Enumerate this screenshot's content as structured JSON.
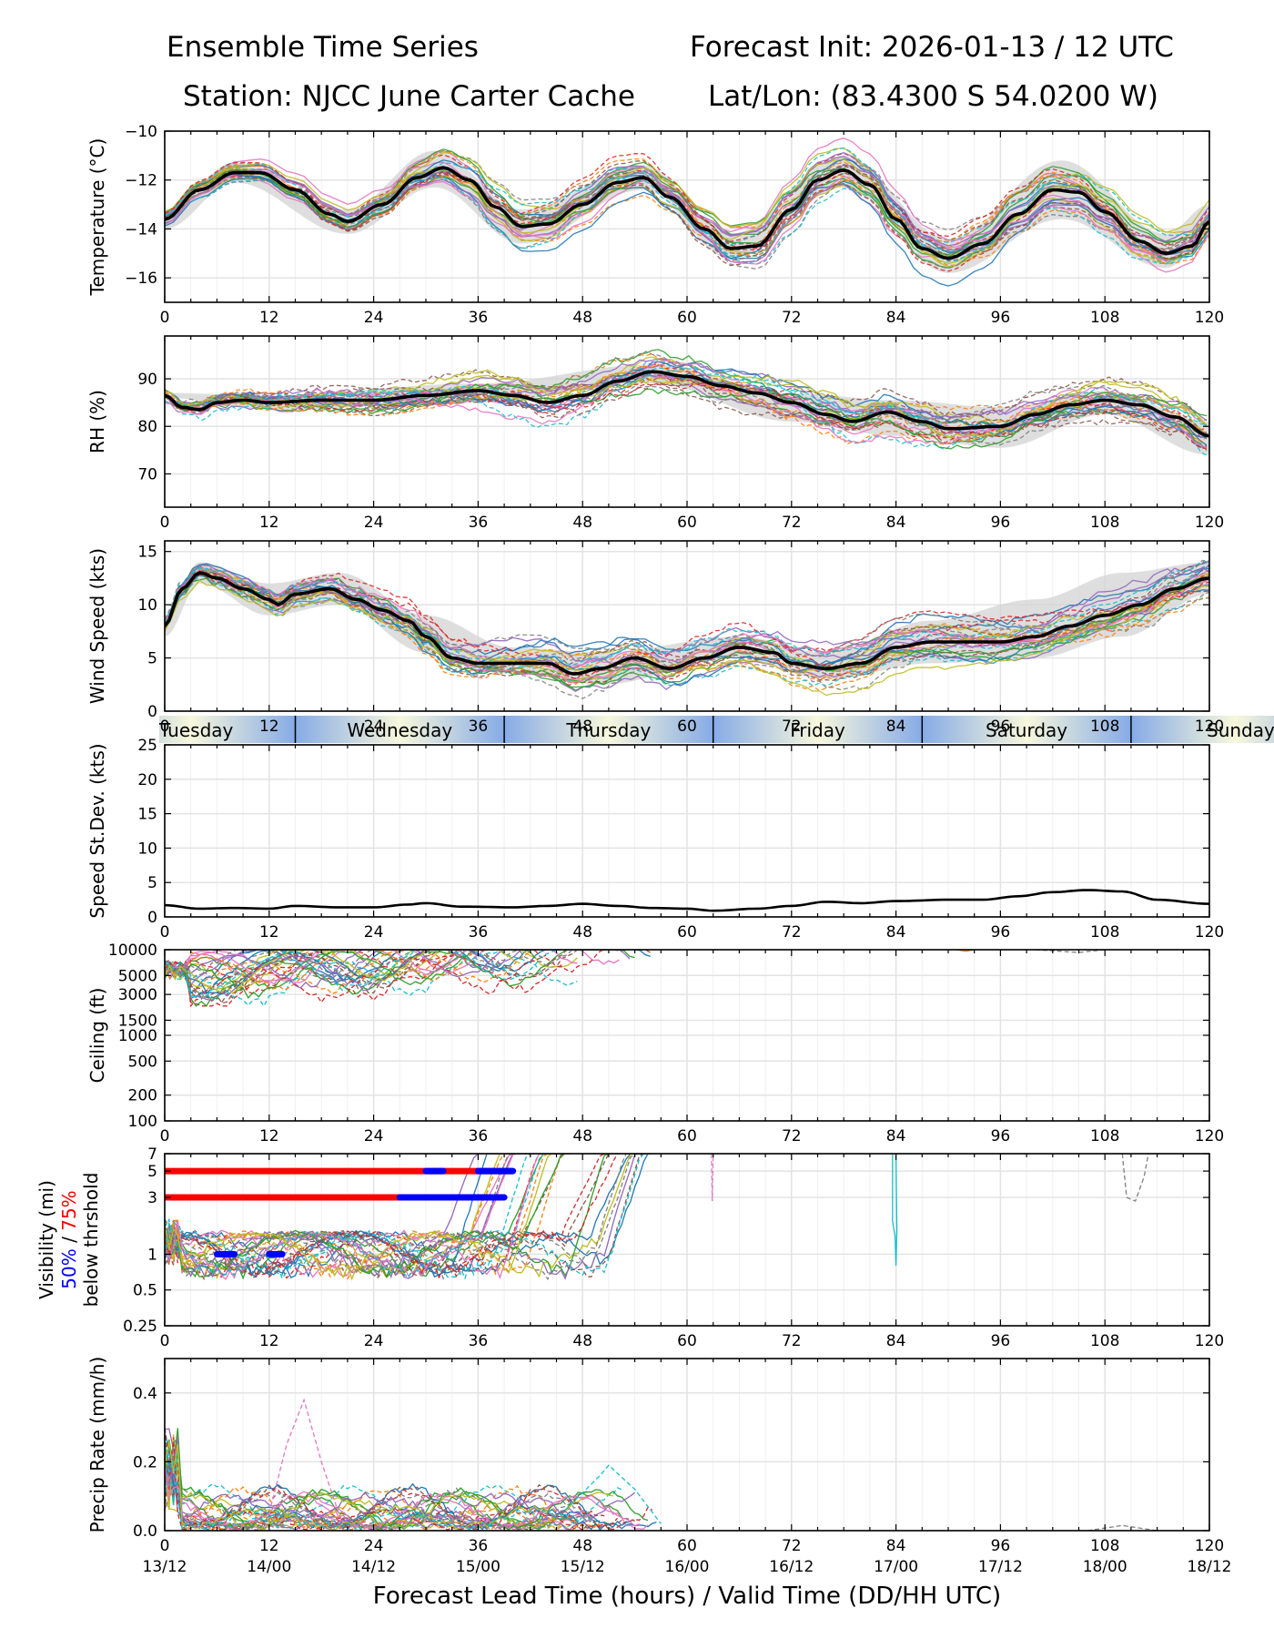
{
  "header": {
    "title_left": "Ensemble Time Series",
    "title_right": "Forecast Init: 2026-01-13 / 12 UTC",
    "station": "Station: NJCC June Carter Cache",
    "latlon": "Lat/Lon: (83.4300 S 54.0200 W)"
  },
  "colors": {
    "ensemble": [
      "#1f77b4",
      "#ff7f0e",
      "#2ca02c",
      "#d62728",
      "#9467bd",
      "#8c564b",
      "#e377c2",
      "#7f7f7f",
      "#bcbd22",
      "#17becf"
    ],
    "mean": "#000000",
    "spread": "#d3d3d3",
    "grid": "#e3e3e3",
    "vis50": "#0000ff",
    "vis75": "#ff0000",
    "day_light": "#f7f7dc",
    "day_dark": "#86abe6"
  },
  "chart_data": [
    {
      "type": "line",
      "id": "temperature",
      "ylabel": "Temperature (°C)",
      "xlim": [
        0,
        120
      ],
      "ylim": [
        -17,
        -10
      ],
      "yticks": [
        -16,
        -14,
        -12,
        -10
      ],
      "xticks": [
        0,
        12,
        24,
        36,
        48,
        60,
        72,
        84,
        96,
        108,
        120
      ],
      "mean": [
        [
          0,
          -13.6
        ],
        [
          4,
          -12.4
        ],
        [
          8,
          -11.7
        ],
        [
          11,
          -11.7
        ],
        [
          15,
          -12.4
        ],
        [
          19,
          -13.4
        ],
        [
          21,
          -13.7
        ],
        [
          25,
          -13.0
        ],
        [
          29,
          -11.9
        ],
        [
          32,
          -11.5
        ],
        [
          35,
          -12.0
        ],
        [
          38,
          -13.1
        ],
        [
          41,
          -13.9
        ],
        [
          44,
          -13.8
        ],
        [
          48,
          -13.0
        ],
        [
          52,
          -12.1
        ],
        [
          55,
          -11.9
        ],
        [
          58,
          -12.7
        ],
        [
          62,
          -14.0
        ],
        [
          65,
          -14.8
        ],
        [
          68,
          -14.7
        ],
        [
          72,
          -13.2
        ],
        [
          75,
          -12.0
        ],
        [
          78,
          -11.6
        ],
        [
          81,
          -12.2
        ],
        [
          84,
          -13.6
        ],
        [
          87,
          -14.8
        ],
        [
          90,
          -15.2
        ],
        [
          94,
          -14.6
        ],
        [
          98,
          -13.4
        ],
        [
          102,
          -12.4
        ],
        [
          105,
          -12.5
        ],
        [
          108,
          -13.3
        ],
        [
          112,
          -14.5
        ],
        [
          115,
          -15.0
        ],
        [
          118,
          -14.7
        ],
        [
          120,
          -13.7
        ]
      ],
      "spread_upper": [
        [
          0,
          -13.2
        ],
        [
          8,
          -11.3
        ],
        [
          21,
          -13.2
        ],
        [
          31,
          -10.8
        ],
        [
          41,
          -13.2
        ],
        [
          55,
          -11.4
        ],
        [
          65,
          -14.2
        ],
        [
          78,
          -11.0
        ],
        [
          90,
          -14.4
        ],
        [
          103,
          -11.2
        ],
        [
          115,
          -14.2
        ],
        [
          120,
          -13.0
        ]
      ],
      "spread_lower": [
        [
          0,
          -14.0
        ],
        [
          8,
          -12.1
        ],
        [
          21,
          -14.2
        ],
        [
          31,
          -12.3
        ],
        [
          41,
          -14.6
        ],
        [
          55,
          -12.4
        ],
        [
          65,
          -15.2
        ],
        [
          78,
          -12.3
        ],
        [
          90,
          -15.8
        ],
        [
          103,
          -13.6
        ],
        [
          115,
          -15.6
        ],
        [
          120,
          -14.4
        ]
      ]
    },
    {
      "type": "line",
      "id": "rh",
      "ylabel": "RH (%)",
      "xlim": [
        0,
        120
      ],
      "ylim": [
        63,
        99
      ],
      "yticks": [
        70,
        80,
        90
      ],
      "xticks": [
        0,
        12,
        24,
        36,
        48,
        60,
        72,
        84,
        96,
        108,
        120
      ],
      "mean": [
        [
          0,
          86.5
        ],
        [
          2,
          84.0
        ],
        [
          4,
          83.5
        ],
        [
          6,
          85.0
        ],
        [
          9,
          85.5
        ],
        [
          12,
          85.0
        ],
        [
          18,
          85.5
        ],
        [
          24,
          85.5
        ],
        [
          30,
          86.5
        ],
        [
          36,
          87.5
        ],
        [
          40,
          86.5
        ],
        [
          44,
          85.0
        ],
        [
          48,
          86.5
        ],
        [
          52,
          89.5
        ],
        [
          56,
          91.5
        ],
        [
          60,
          90.5
        ],
        [
          64,
          88.5
        ],
        [
          68,
          87.0
        ],
        [
          72,
          85.0
        ],
        [
          76,
          82.5
        ],
        [
          79,
          81.0
        ],
        [
          83,
          83.0
        ],
        [
          87,
          81.0
        ],
        [
          90,
          79.5
        ],
        [
          96,
          80.0
        ],
        [
          100,
          82.5
        ],
        [
          104,
          84.5
        ],
        [
          108,
          85.5
        ],
        [
          112,
          84.5
        ],
        [
          116,
          82.0
        ],
        [
          120,
          78.0
        ]
      ],
      "spread_upper": [
        [
          0,
          87
        ],
        [
          12,
          86.5
        ],
        [
          36,
          89
        ],
        [
          56,
          93
        ],
        [
          72,
          87
        ],
        [
          84,
          85.5
        ],
        [
          96,
          84
        ],
        [
          108,
          87.5
        ],
        [
          120,
          81
        ]
      ],
      "spread_lower": [
        [
          0,
          86
        ],
        [
          12,
          83.5
        ],
        [
          36,
          85
        ],
        [
          56,
          89
        ],
        [
          72,
          81
        ],
        [
          84,
          78
        ],
        [
          96,
          75.5
        ],
        [
          108,
          82.5
        ],
        [
          120,
          74
        ]
      ]
    },
    {
      "type": "line",
      "id": "wind",
      "ylabel": "Wind Speed (kts)",
      "xlim": [
        0,
        120
      ],
      "ylim": [
        0,
        16
      ],
      "yticks": [
        0,
        5,
        10,
        15
      ],
      "xticks": [
        0,
        12,
        24,
        36,
        48,
        60,
        72,
        84,
        96,
        108,
        120
      ],
      "mean": [
        [
          0,
          8
        ],
        [
          2,
          11.5
        ],
        [
          4,
          13.0
        ],
        [
          6,
          12.5
        ],
        [
          9,
          11.5
        ],
        [
          12,
          10.5
        ],
        [
          13,
          10.0
        ],
        [
          15,
          11.0
        ],
        [
          19,
          11.5
        ],
        [
          22,
          10.5
        ],
        [
          25,
          9.5
        ],
        [
          28,
          8.5
        ],
        [
          30,
          7.0
        ],
        [
          33,
          5.0
        ],
        [
          36,
          4.5
        ],
        [
          40,
          4.5
        ],
        [
          44,
          4.5
        ],
        [
          47,
          3.5
        ],
        [
          50,
          4.0
        ],
        [
          54,
          5.0
        ],
        [
          58,
          4.0
        ],
        [
          62,
          5.0
        ],
        [
          66,
          6.0
        ],
        [
          70,
          5.5
        ],
        [
          72,
          4.5
        ],
        [
          76,
          4.0
        ],
        [
          80,
          4.5
        ],
        [
          84,
          6.0
        ],
        [
          88,
          6.5
        ],
        [
          92,
          6.5
        ],
        [
          96,
          6.5
        ],
        [
          100,
          7.0
        ],
        [
          104,
          8.0
        ],
        [
          108,
          9.0
        ],
        [
          112,
          10.0
        ],
        [
          116,
          11.5
        ],
        [
          120,
          12.5
        ]
      ],
      "spread_upper": [
        [
          0,
          9
        ],
        [
          4,
          14
        ],
        [
          12,
          12
        ],
        [
          20,
          13
        ],
        [
          30,
          9
        ],
        [
          40,
          6
        ],
        [
          50,
          5.5
        ],
        [
          66,
          7
        ],
        [
          76,
          5.5
        ],
        [
          88,
          8.5
        ],
        [
          100,
          10.5
        ],
        [
          110,
          13
        ],
        [
          120,
          14
        ]
      ],
      "spread_lower": [
        [
          0,
          7
        ],
        [
          4,
          12
        ],
        [
          12,
          9
        ],
        [
          20,
          10
        ],
        [
          30,
          5.5
        ],
        [
          40,
          3.5
        ],
        [
          50,
          2.5
        ],
        [
          66,
          5
        ],
        [
          76,
          3
        ],
        [
          88,
          4.5
        ],
        [
          100,
          5
        ],
        [
          110,
          7
        ],
        [
          120,
          11
        ]
      ]
    },
    {
      "type": "line",
      "id": "speed_stdev",
      "ylabel": "Speed St.Dev. (kts)",
      "xlim": [
        0,
        120
      ],
      "ylim": [
        0,
        25
      ],
      "yticks": [
        0,
        5,
        10,
        15,
        20,
        25
      ],
      "xticks": [
        0,
        12,
        24,
        36,
        48,
        60,
        72,
        84,
        96,
        108,
        120
      ],
      "day_labels": [
        "Tuesday",
        "Wednesday",
        "Thursday",
        "Friday",
        "Saturday",
        "Sunday"
      ],
      "day_boundaries": [
        15,
        39,
        63,
        87,
        111
      ],
      "mean": [
        [
          0,
          1.7
        ],
        [
          4,
          1.2
        ],
        [
          8,
          1.3
        ],
        [
          12,
          1.2
        ],
        [
          15,
          1.6
        ],
        [
          20,
          1.4
        ],
        [
          24,
          1.4
        ],
        [
          28,
          1.8
        ],
        [
          30,
          2.0
        ],
        [
          34,
          1.5
        ],
        [
          40,
          1.4
        ],
        [
          44,
          1.6
        ],
        [
          48,
          1.9
        ],
        [
          52,
          1.6
        ],
        [
          56,
          1.3
        ],
        [
          60,
          1.2
        ],
        [
          63,
          0.9
        ],
        [
          68,
          1.2
        ],
        [
          72,
          1.6
        ],
        [
          76,
          2.2
        ],
        [
          80,
          2.0
        ],
        [
          84,
          2.3
        ],
        [
          90,
          2.5
        ],
        [
          94,
          2.5
        ],
        [
          98,
          3.0
        ],
        [
          102,
          3.6
        ],
        [
          106,
          3.9
        ],
        [
          110,
          3.7
        ],
        [
          114,
          2.5
        ],
        [
          120,
          1.9
        ]
      ]
    },
    {
      "type": "line",
      "id": "ceiling",
      "ylabel": "Ceiling (ft)",
      "xlim": [
        0,
        120
      ],
      "ylim": [
        100,
        10000
      ],
      "yscale": "log",
      "yticks": [
        100,
        200,
        500,
        1000,
        1500,
        3000,
        5000,
        10000
      ],
      "xticks": [
        0,
        12,
        24,
        36,
        48,
        60,
        72,
        84,
        96,
        108,
        120
      ]
    },
    {
      "type": "line",
      "id": "visibility",
      "ylabel": "Visibility (mi)",
      "ylabel_50": "50%",
      "ylabel_sep": " / ",
      "ylabel_75": "75%",
      "ylabel_line3": "below thrshold",
      "xlim": [
        0,
        120
      ],
      "ylim": [
        0.25,
        7
      ],
      "yscale": "log",
      "yticks": [
        0.25,
        0.5,
        1,
        3,
        5,
        7
      ],
      "ytick_labels": [
        "0.25",
        "0.5",
        "1",
        "3",
        "5",
        "7"
      ],
      "xticks": [
        0,
        12,
        24,
        36,
        48,
        60,
        72,
        84,
        96,
        108,
        120
      ],
      "thresholds_75": [
        {
          "level": 5,
          "x": [
            0,
            40
          ]
        },
        {
          "level": 3,
          "x": [
            0,
            39
          ]
        }
      ],
      "thresholds_50": [
        {
          "level": 5,
          "x": [
            30,
            32
          ]
        },
        {
          "level": 5,
          "x": [
            36,
            40
          ]
        },
        {
          "level": 3,
          "x": [
            27,
            39
          ]
        },
        {
          "level": 1,
          "x": [
            6,
            8
          ]
        },
        {
          "level": 1,
          "x": [
            12,
            13.5
          ]
        }
      ]
    },
    {
      "type": "line",
      "id": "precip",
      "ylabel": "Precip Rate (mm/h)",
      "xlabel": "Forecast Lead Time (hours) / Valid Time (DD/HH UTC)",
      "xlim": [
        0,
        120
      ],
      "ylim": [
        0,
        0.5
      ],
      "yticks": [
        0.0,
        0.2,
        0.4
      ],
      "ytick_labels": [
        "0.0",
        "0.2",
        "0.4"
      ],
      "xticks": [
        0,
        12,
        24,
        36,
        48,
        60,
        72,
        84,
        96,
        108,
        120
      ],
      "valid_times": [
        "13/12",
        "14/00",
        "14/12",
        "15/00",
        "15/12",
        "16/00",
        "16/12",
        "17/00",
        "17/12",
        "18/00",
        "18/12"
      ]
    }
  ]
}
